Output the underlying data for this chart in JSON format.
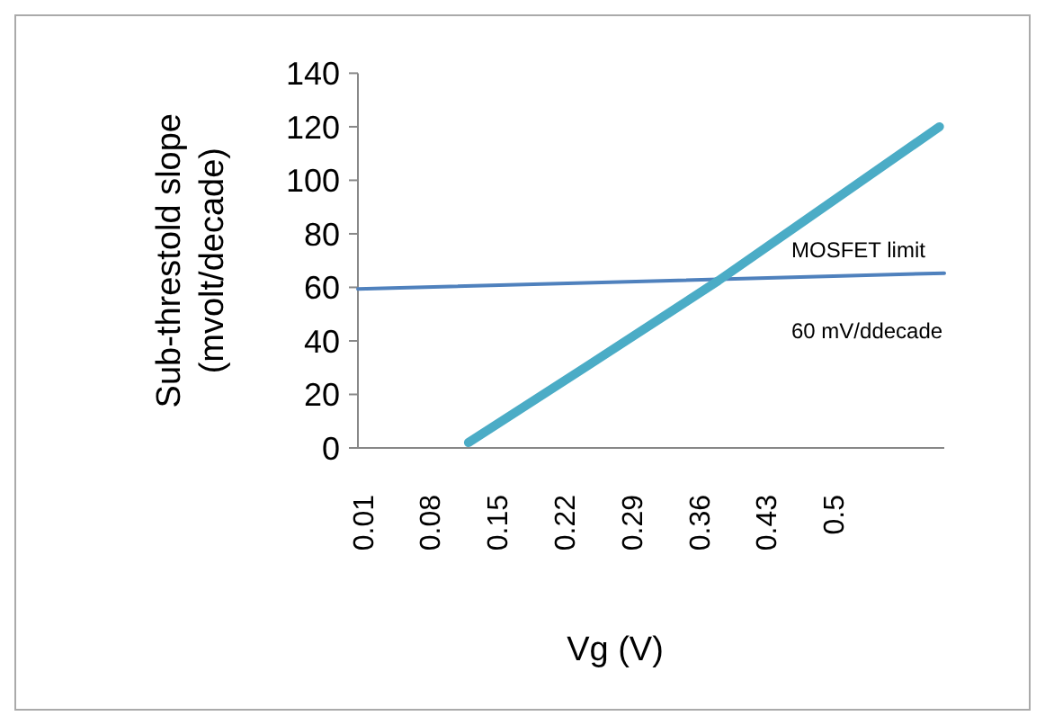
{
  "chart_data": {
    "type": "line",
    "xlabel": "Vg (V)",
    "ylabel": "Sub-threstold slope\n(mvolt/decade)",
    "xlim": [
      0.005,
      0.615
    ],
    "xticks": [
      0.01,
      0.08,
      0.15,
      0.22,
      0.29,
      0.36,
      0.43,
      0.5
    ],
    "ylim": [
      0,
      140
    ],
    "yticks": [
      0,
      20,
      40,
      60,
      80,
      100,
      120,
      140
    ],
    "series": [
      {
        "color": "#4f81bd",
        "x": [
          0.005,
          0.615
        ],
        "values": [
          59.4,
          65.3
        ]
      },
      {
        "color": "#4bacc6",
        "x": [
          0.12,
          0.244,
          0.38,
          0.61
        ],
        "values": [
          2,
          30.7,
          62.5,
          120
        ]
      }
    ],
    "annotations": [
      "MOSFET limit",
      "60 mV/ddecade"
    ],
    "grid": false,
    "marker": "none",
    "line_style": "solid"
  }
}
